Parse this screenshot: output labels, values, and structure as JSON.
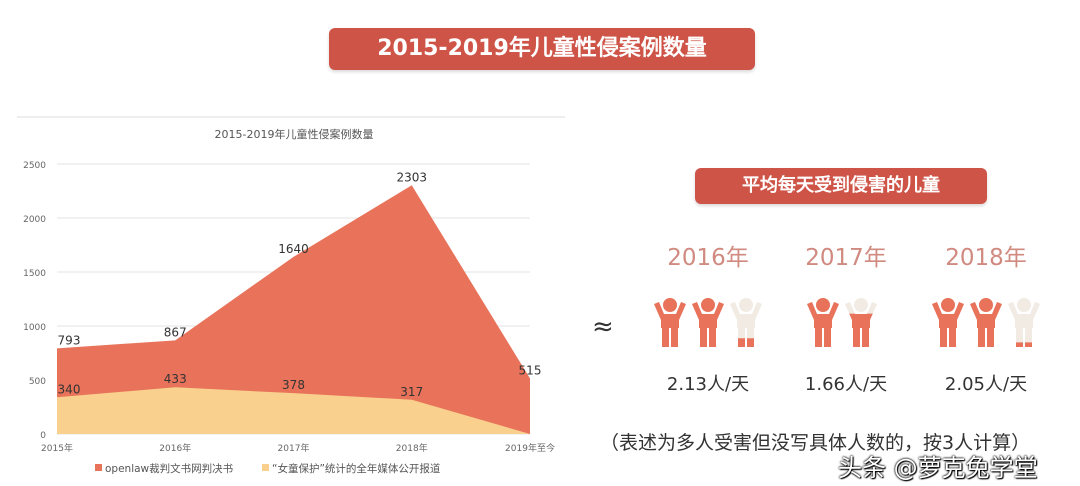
{
  "header": {
    "title": "2015-2019年儿童性侵案例数量"
  },
  "chart_data": {
    "type": "area",
    "title": "2015-2019年儿童性侵案例数量",
    "categories": [
      "2015年",
      "2016年",
      "2017年",
      "2018年",
      "2019年至今"
    ],
    "series": [
      {
        "name": "openlaw裁判文书网判决书",
        "values": [
          793,
          867,
          1640,
          2303,
          515
        ],
        "color": "#e8735a"
      },
      {
        "name": "“女童保护”统计的全年媒体公开报道",
        "values": [
          340,
          433,
          378,
          317,
          0
        ],
        "color": "#f9d08e"
      }
    ],
    "data_labels_shown": [
      true,
      true
    ],
    "yticks": [
      "0",
      "500",
      "1000",
      "1500",
      "2000",
      "2500"
    ],
    "ylim": [
      0,
      2500
    ],
    "grid": true,
    "legend": "bottom"
  },
  "daily": {
    "title": "平均每天受到侵害的儿童",
    "approx_symbol": "≈",
    "items": [
      {
        "year": "2016年",
        "rate": "2.13人/天",
        "value": 2.13
      },
      {
        "year": "2017年",
        "rate": "1.66人/天",
        "value": 1.66
      },
      {
        "year": "2018年",
        "rate": "2.05人/天",
        "value": 2.05
      }
    ],
    "note": "（表述为多人受害但没写具体人数的，按3人计算）",
    "icon_color": "#e8735a",
    "icon_empty_color": "#f1ebe4"
  },
  "watermark": "头条 @萝克兔学堂"
}
